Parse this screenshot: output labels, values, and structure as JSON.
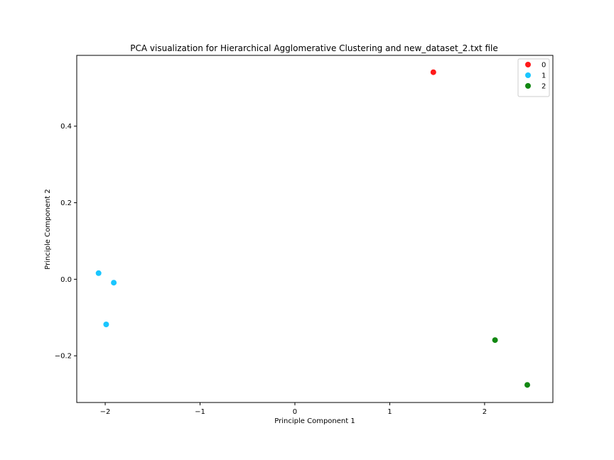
{
  "chart_data": {
    "type": "scatter",
    "title": "PCA visualization for Hierarchical Agglomerative Clustering and new_dataset_2.txt file",
    "xlabel": "Principle Component 1",
    "ylabel": "Principle Component 2",
    "xlim": [
      -2.3,
      2.72
    ],
    "ylim": [
      -0.322,
      0.585
    ],
    "xticks": [
      -2,
      -1,
      0,
      1,
      2
    ],
    "xtick_labels": [
      "−2",
      "−1",
      "0",
      "1",
      "2"
    ],
    "yticks": [
      -0.2,
      0.0,
      0.2,
      0.4
    ],
    "ytick_labels": [
      "−0.2",
      "0.0",
      "0.2",
      "0.4"
    ],
    "grid": false,
    "legend_position": "top-right",
    "series": [
      {
        "name": "0",
        "color": "#ff1a1a",
        "points": [
          [
            1.46,
            0.541
          ]
        ]
      },
      {
        "name": "1",
        "color": "#1ac6ff",
        "points": [
          [
            -2.07,
            0.016
          ],
          [
            -1.91,
            -0.009
          ],
          [
            -1.99,
            -0.118
          ]
        ]
      },
      {
        "name": "2",
        "color": "#128812",
        "points": [
          [
            2.11,
            -0.159
          ],
          [
            2.45,
            -0.276
          ]
        ]
      }
    ]
  }
}
